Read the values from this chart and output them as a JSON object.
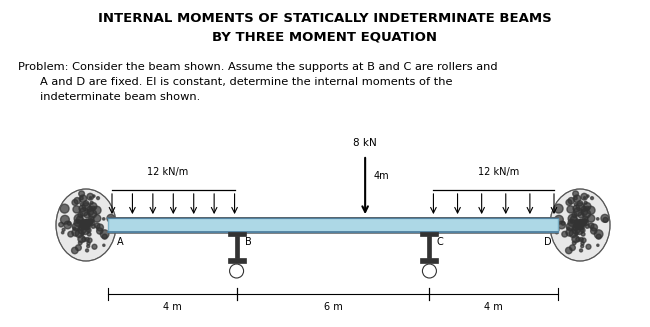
{
  "title_line1": "INTERNAL MOMENTS OF STATICALLY INDETERMINATE BEAMS",
  "title_line2": "BY THREE MOMENT EQUATION",
  "prob1": "Problem: Consider the beam shown. Assume the supports at B and C are rollers and",
  "prob2": "A and D are fixed. El is constant, determine the internal moments of the",
  "prob3": "indeterminate beam shown.",
  "background_color": "#ffffff",
  "beam_color": "#add8e6",
  "beam_edge_color": "#7bafc4",
  "label_A": "A",
  "label_B": "B",
  "label_C": "C",
  "label_D": "D",
  "dist_AB": "4 m",
  "dist_BC": "6 m",
  "dist_CD": "4 m",
  "load_left": "12 kN/m",
  "load_right": "12 kN/m",
  "point_load": "8 kN",
  "offset_label": "4m",
  "fig_width": 6.5,
  "fig_height": 3.27,
  "dpi": 100
}
